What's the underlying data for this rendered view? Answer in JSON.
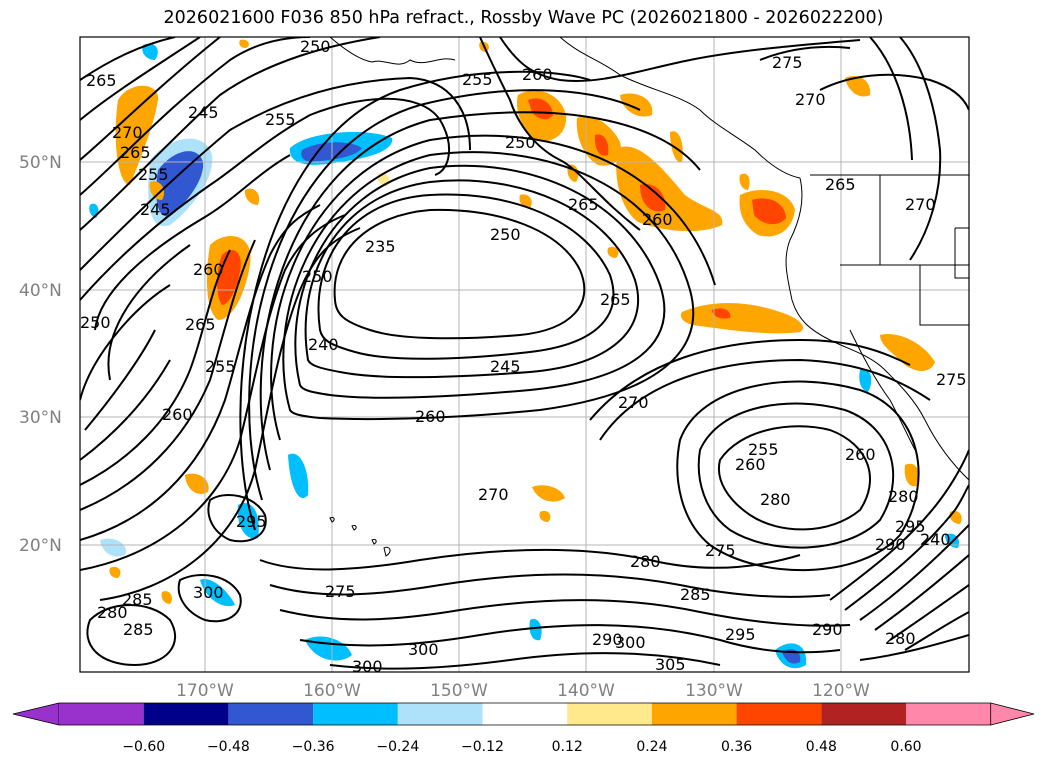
{
  "title": "2026021600 F036 850 hPa refract., Rossby Wave PC (2026021800 - 2026022200)",
  "lat_labels": [
    "50°N",
    "40°N",
    "30°N",
    "20°N"
  ],
  "lon_labels": [
    "170°W",
    "160°W",
    "150°W",
    "140°W",
    "130°W",
    "120°W"
  ],
  "contour_labels": [
    "265",
    "270",
    "265",
    "245",
    "255",
    "250",
    "245",
    "255",
    "260",
    "265",
    "250",
    "240",
    "250",
    "235",
    "255",
    "260",
    "245",
    "260",
    "260",
    "270",
    "265",
    "270",
    "275",
    "280",
    "285",
    "290",
    "295",
    "300",
    "300",
    "300",
    "305",
    "295",
    "285",
    "280",
    "275",
    "290",
    "280",
    "265",
    "250",
    "255",
    "260",
    "255",
    "260",
    "280",
    "270",
    "250",
    "240",
    "260",
    "265",
    "270",
    "275",
    "290",
    "295",
    "300",
    "280",
    "275",
    "285"
  ],
  "colorbar": {
    "ticks": [
      "−0.60",
      "−0.48",
      "−0.36",
      "−0.24",
      "−0.12",
      "0.12",
      "0.24",
      "0.36",
      "0.48",
      "0.60"
    ],
    "colors": [
      "#9932cc",
      "#00008b",
      "#3158d0",
      "#00bfff",
      "#aee2fb",
      "#ffffff",
      "#ffe98c",
      "#ffa500",
      "#ff4500",
      "#b22222",
      "#ff88aa"
    ]
  }
}
